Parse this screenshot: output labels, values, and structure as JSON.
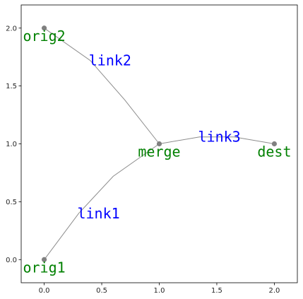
{
  "chart_data": {
    "type": "line",
    "title": "",
    "xlabel": "",
    "ylabel": "",
    "xlim": [
      -0.2,
      2.2
    ],
    "ylim": [
      -0.2,
      2.2
    ],
    "xticks": [
      0.0,
      0.5,
      1.0,
      1.5,
      2.0
    ],
    "yticks": [
      0.0,
      0.5,
      1.0,
      1.5,
      2.0
    ],
    "xtick_labels": [
      "0.0",
      "0.5",
      "1.0",
      "1.5",
      "2.0"
    ],
    "ytick_labels": [
      "0.0",
      "0.5",
      "1.0",
      "1.5",
      "2.0"
    ],
    "grid": false,
    "nodes": [
      {
        "id": "orig1",
        "label": "orig1",
        "x": 0.0,
        "y": 0.0
      },
      {
        "id": "orig2",
        "label": "orig2",
        "x": 0.0,
        "y": 2.0
      },
      {
        "id": "merge",
        "label": "merge",
        "x": 1.0,
        "y": 1.0
      },
      {
        "id": "dest",
        "label": "dest",
        "x": 2.0,
        "y": 1.0
      }
    ],
    "links": [
      {
        "id": "link1",
        "label": "link1",
        "points": [
          [
            0.0,
            0.0
          ],
          [
            0.3,
            0.4
          ],
          [
            0.6,
            0.72
          ],
          [
            1.0,
            1.0
          ]
        ],
        "label_x": 0.3,
        "label_y": 0.4
      },
      {
        "id": "link2",
        "label": "link2",
        "points": [
          [
            0.0,
            2.0
          ],
          [
            0.4,
            1.72
          ],
          [
            0.7,
            1.38
          ],
          [
            1.0,
            1.0
          ]
        ],
        "label_x": 0.4,
        "label_y": 1.72
      },
      {
        "id": "link3",
        "label": "link3",
        "points": [
          [
            1.0,
            1.0
          ],
          [
            1.35,
            1.06
          ],
          [
            1.65,
            1.06
          ],
          [
            2.0,
            1.0
          ]
        ],
        "label_x": 1.35,
        "label_y": 1.06
      }
    ],
    "colors": {
      "node": "#808080",
      "link": "#8c8c8c",
      "node_label": "#008000",
      "link_label": "#0000ff",
      "axes": "#000000"
    }
  }
}
